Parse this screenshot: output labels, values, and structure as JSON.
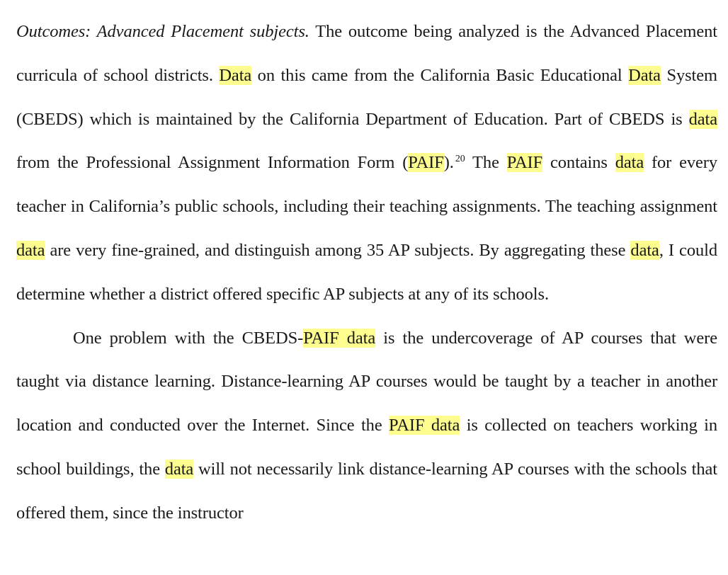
{
  "highlight_color": "#fdfd8f",
  "paragraphs": [
    {
      "id": "p1",
      "indent": false,
      "runs": [
        {
          "text": "Outcomes: Advanced Placement subjects.",
          "style": "italic"
        },
        {
          "text": "  The outcome being analyzed is the Advanced Placement curricula of school districts.  "
        },
        {
          "text": "Data",
          "style": "highlight"
        },
        {
          "text": " on this came from the California Basic Educational "
        },
        {
          "text": "Data",
          "style": "highlight"
        },
        {
          "text": " System (CBEDS) which is maintained by the California Department of Education.  Part of CBEDS is "
        },
        {
          "text": "data",
          "style": "highlight"
        },
        {
          "text": " from the Professional Assignment Information Form ("
        },
        {
          "text": "PAIF",
          "style": "highlight"
        },
        {
          "text": ")."
        },
        {
          "text": "20",
          "style": "footnote"
        },
        {
          "text": "  The "
        },
        {
          "text": "PAIF",
          "style": "highlight"
        },
        {
          "text": " contains "
        },
        {
          "text": "data",
          "style": "highlight"
        },
        {
          "text": " for every teacher in California’s public schools, including their teaching assignments.  The teaching assignment "
        },
        {
          "text": "data",
          "style": "highlight"
        },
        {
          "text": " are very fine-grained, and distinguish among 35 AP subjects.  By aggregating these "
        },
        {
          "text": "data",
          "style": "highlight"
        },
        {
          "text": ", I could determine whether a district offered specific AP subjects at any of its schools."
        }
      ]
    },
    {
      "id": "p2",
      "indent": true,
      "runs": [
        {
          "text": "One problem with the CBEDS-"
        },
        {
          "text": "PAIF data",
          "style": "highlight"
        },
        {
          "text": " is the undercoverage of AP courses that were taught via distance learning.  Distance-learning AP courses would be taught by a teacher in another location and conducted over the Internet.  Since the "
        },
        {
          "text": "PAIF data",
          "style": "highlight"
        },
        {
          "text": " is collected on teachers working in school buildings, the "
        },
        {
          "text": "data",
          "style": "highlight"
        },
        {
          "text": " will not necessarily link distance-learning AP courses with the schools that offered them, since the instructor"
        }
      ]
    }
  ]
}
